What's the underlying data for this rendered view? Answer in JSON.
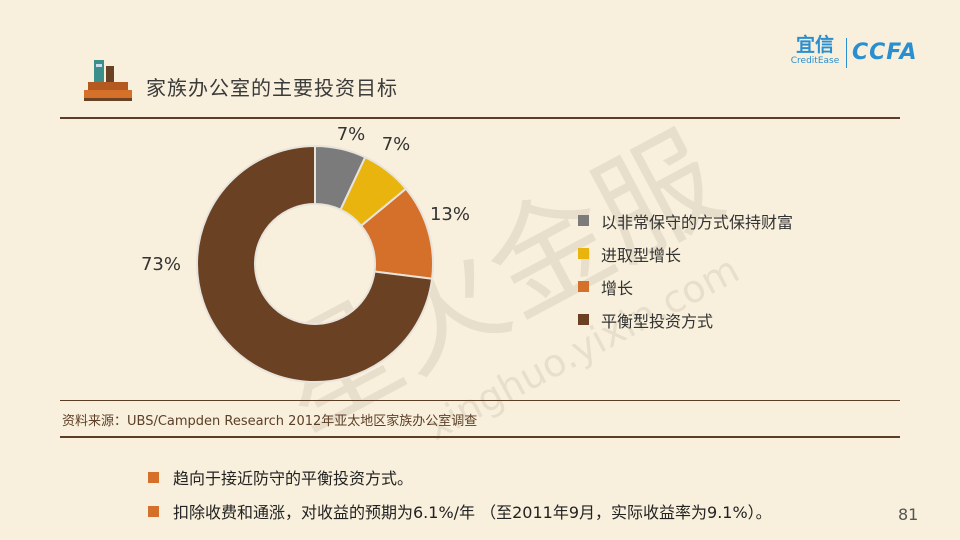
{
  "header": {
    "title": "家族办公室的主要投资目标",
    "logo_cn": "宜信",
    "logo_en": "CreditEase",
    "logo_ccfa": "CCFA"
  },
  "chart_data": {
    "type": "pie",
    "donut": true,
    "categories": [
      "以非常保守的方式保持财富",
      "进取型增长",
      "增长",
      "平衡型投资方式"
    ],
    "values": [
      7,
      7,
      13,
      73
    ],
    "labels": [
      "7%",
      "7%",
      "13%",
      "73%"
    ],
    "colors": [
      "#7b7b7b",
      "#e8b40d",
      "#d5702a",
      "#6b4123"
    ],
    "legend_position": "right"
  },
  "source": "资料来源：UBS/Campden Research 2012年亚太地区家族办公室调查",
  "bullets": [
    "趋向于接近防守的平衡投资方式。",
    "扣除收费和通涨，对收益的预期为6.1%/年 （至2011年9月，实际收益率为9.1%）。"
  ],
  "page_number": "81",
  "watermark": {
    "text": "星火金服",
    "url": "xinghuo.yixin.com"
  },
  "icons": {
    "header": "books-icon"
  }
}
